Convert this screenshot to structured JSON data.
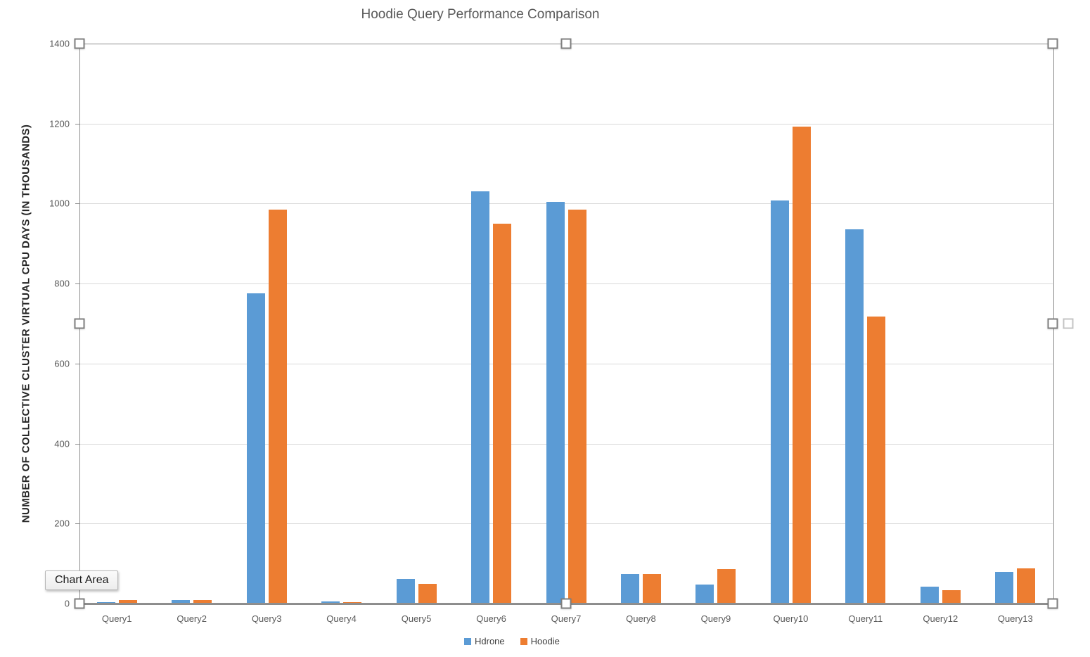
{
  "chart_data": {
    "type": "bar",
    "title": "Hoodie Query Performance Comparison",
    "ylabel": "NUMBER OF COLLECTIVE CLUSTER VIRTUAL CPU DAYS (IN THOUSANDS)",
    "xlabel": "",
    "ylim": [
      0,
      1400
    ],
    "yticks": [
      0,
      200,
      400,
      600,
      800,
      1000,
      1200,
      1400
    ],
    "grid": true,
    "legend_position": "bottom",
    "categories": [
      "Query1",
      "Query2",
      "Query3",
      "Query4",
      "Query5",
      "Query6",
      "Query7",
      "Query8",
      "Query9",
      "Query10",
      "Query11",
      "Query12",
      "Query13"
    ],
    "series": [
      {
        "name": "Hdrone",
        "color": "#5B9BD5",
        "values": [
          4,
          8,
          775,
          5,
          62,
          1030,
          1005,
          73,
          48,
          1007,
          935,
          42,
          80
        ]
      },
      {
        "name": "Hoodie",
        "color": "#ED7D31",
        "values": [
          8,
          8,
          985,
          4,
          50,
          950,
          985,
          74,
          86,
          1193,
          718,
          33,
          88
        ]
      }
    ]
  },
  "tooltip": {
    "label": "Chart Area"
  }
}
